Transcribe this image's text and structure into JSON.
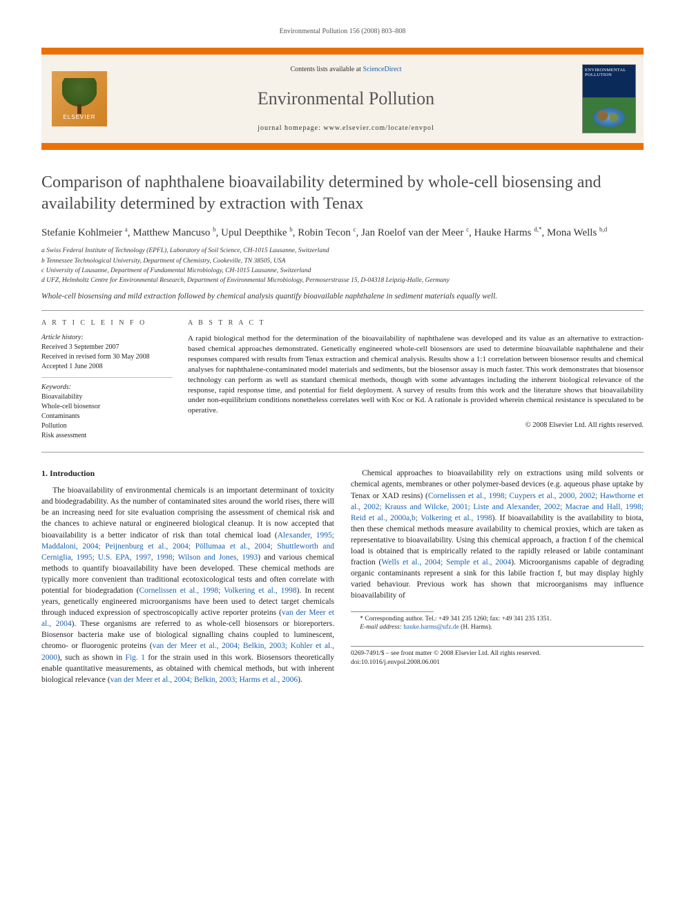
{
  "running_head": "Environmental Pollution 156 (2008) 803–808",
  "header": {
    "publisher_name": "ELSEVIER",
    "contents_prefix": "Contents lists available at ",
    "contents_link": "ScienceDirect",
    "journal_name": "Environmental Pollution",
    "homepage_label": "journal homepage: www.elsevier.com/locate/envpol",
    "cover_title": "ENVIRONMENTAL POLLUTION"
  },
  "title": "Comparison of naphthalene bioavailability determined by whole-cell biosensing and availability determined by extraction with Tenax",
  "authors_html": "Stefanie Kohlmeier <sup>a</sup>, Matthew Mancuso <sup>b</sup>, Upul Deepthike <sup>b</sup>, Robin Tecon <sup>c</sup>, Jan Roelof van der Meer <sup>c</sup>, Hauke Harms <sup>d,*</sup>, Mona Wells <sup>b,d</sup>",
  "affiliations": [
    "a Swiss Federal Institute of Technology (EPFL), Laboratory of Soil Science, CH-1015 Lausanne, Switzerland",
    "b Tennessee Technological University, Department of Chemistry, Cookeville, TN 38505, USA",
    "c University of Lausanne, Department of Fundamental Microbiology, CH-1015 Lausanne, Switzerland",
    "d UFZ, Helmholtz Centre for Environmental Research, Department of Environmental Microbiology, Permoserstrasse 15, D-04318 Leipzig-Halle, Germany"
  ],
  "tagline": "Whole-cell biosensing and mild extraction followed by chemical analysis quantify bioavailable naphthalene in sediment materials equally well.",
  "article_info": {
    "heading": "A R T I C L E   I N F O",
    "history_label": "Article history:",
    "history": [
      "Received 3 September 2007",
      "Received in revised form 30 May 2008",
      "Accepted 1 June 2008"
    ],
    "keywords_label": "Keywords:",
    "keywords": [
      "Bioavailability",
      "Whole-cell biosensor",
      "Contaminants",
      "Pollution",
      "Risk assessment"
    ]
  },
  "abstract": {
    "heading": "A B S T R A C T",
    "text": "A rapid biological method for the determination of the bioavailability of naphthalene was developed and its value as an alternative to extraction-based chemical approaches demonstrated. Genetically engineered whole-cell biosensors are used to determine bioavailable naphthalene and their responses compared with results from Tenax extraction and chemical analysis. Results show a 1:1 correlation between biosensor results and chemical analyses for naphthalene-contaminated model materials and sediments, but the biosensor assay is much faster. This work demonstrates that biosensor technology can perform as well as standard chemical methods, though with some advantages including the inherent biological relevance of the response, rapid response time, and potential for field deployment. A survey of results from this work and the literature shows that bioavailability under non-equilibrium conditions nonetheless correlates well with Koc or Kd. A rationale is provided wherein chemical resistance is speculated to be operative.",
    "copyright": "© 2008 Elsevier Ltd. All rights reserved."
  },
  "body": {
    "section_head": "1. Introduction",
    "p1_a": "The bioavailability of environmental chemicals is an important determinant of toxicity and biodegradability. As the number of contaminated sites around the world rises, there will be an increasing need for site evaluation comprising the assessment of chemical risk and the chances to achieve natural or engineered biological cleanup. It is now accepted that bioavailability is a better indicator of risk than total chemical load (",
    "p1_link1": "Alexander, 1995; Maddaloni, 2004; Peijnenburg et al., 2004; Pöllumaa et al., 2004; Shuttleworth and Cerniglia, 1995; U.S. EPA, 1997, 1998; Wilson and Jones, 1993",
    "p1_b": ") and various chemical methods to quantify bioavailability have been developed. These chemical methods are typically more convenient than traditional ecotoxicological tests and often correlate with potential for biodegradation (",
    "p1_link2": "Cornelissen et al., 1998; Volkering et al., 1998",
    "p1_c": "). In recent years, genetically engineered microorganisms have been used to detect target chemicals through induced expression of spectroscopically active reporter proteins (",
    "p1_link3": "van der Meer et al., 2004",
    "p1_d": "). These organisms are referred to as whole-cell biosensors or bioreporters. Biosensor bacteria make use of biological signalling chains coupled to luminescent, chromo- or fluorogenic proteins (",
    "p1_link4": "van der Meer et al., 2004; Belkin, 2003; Kohler et al., 2000",
    "p1_e": "), such as shown in ",
    "p1_link5": "Fig. 1",
    "p1_f": " for the strain used in this work. Biosensors theoretically enable quantitative measurements, as obtained with chemical methods, but with inherent biological relevance (",
    "p1_link6": "van der Meer et al., 2004; Belkin, 2003; Harms et al., 2006",
    "p1_g": ").",
    "p2_a": "Chemical approaches to bioavailability rely on extractions using mild solvents or chemical agents, membranes or other polymer-based devices (e.g. aqueous phase uptake by Tenax or XAD resins) (",
    "p2_link1": "Cornelissen et al., 1998; Cuypers et al., 2000, 2002; Hawthorne et al., 2002; Krauss and Wilcke, 2001; Liste and Alexander, 2002; Macrae and Hall, 1998; Reid et al., 2000a,b; Volkering et al., 1998",
    "p2_b": "). If bioavailability is the availability to biota, then these chemical methods measure availability to chemical proxies, which are taken as representative to bioavailability. Using this chemical approach, a fraction f of the chemical load is obtained that is empirically related to the rapidly released or labile contaminant fraction (",
    "p2_link2": "Wells et al., 2004; Semple et al., 2004",
    "p2_c": "). Microorganisms capable of degrading organic contaminants represent a sink for this labile fraction f, but may display highly varied behaviour. Previous work has shown that microorganisms may influence bioavailability of"
  },
  "footnote": {
    "corr": "* Corresponding author. Tel.: +49 341 235 1260; fax: +49 341 235 1351.",
    "email_label": "E-mail address:",
    "email": "hauke.harms@ufz.de",
    "email_suffix": " (H. Harms)."
  },
  "footer": {
    "line1": "0269-7491/$ – see front matter © 2008 Elsevier Ltd. All rights reserved.",
    "line2": "doi:10.1016/j.envpol.2008.06.001"
  },
  "colors": {
    "accent_orange": "#ec7105",
    "link_blue": "#1660b3",
    "header_bg": "#f6f1e9"
  }
}
